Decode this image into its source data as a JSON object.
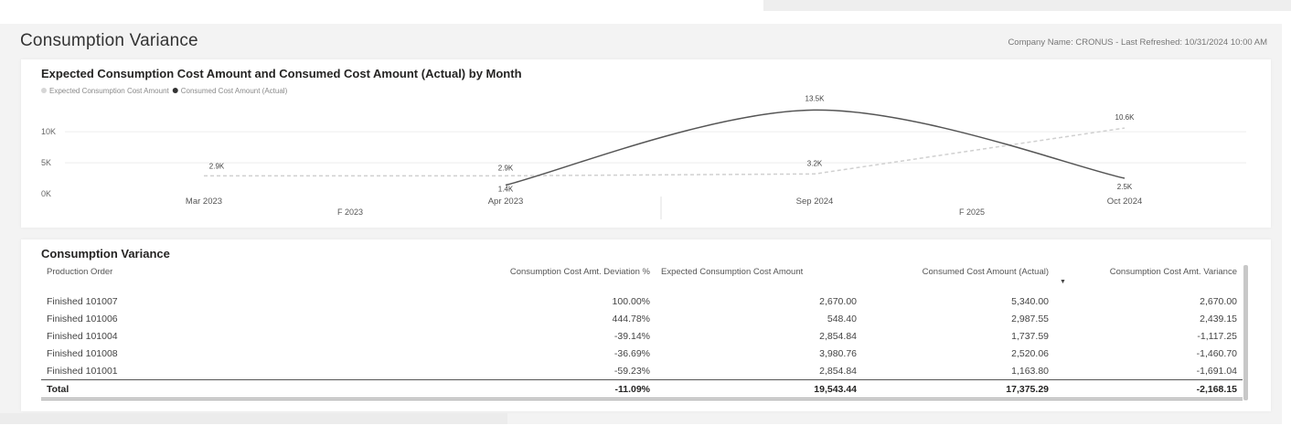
{
  "header": {
    "title": "Consumption Variance",
    "refresh_text": "Company Name: CRONUS - Last Refreshed: 10/31/2024 10:00 AM"
  },
  "chart_card": {
    "chart_data": {
      "type": "line",
      "title": "Expected Consumption Cost Amount and Consumed Cost Amount (Actual) by Month",
      "categories": [
        "Mar 2023",
        "Apr 2023",
        "Sep 2024",
        "Oct 2024"
      ],
      "category_groups": [
        {
          "label": "F 2023",
          "categories": [
            "Mar 2023",
            "Apr 2023"
          ]
        },
        {
          "label": "F 2025",
          "categories": [
            "Sep 2024",
            "Oct 2024"
          ]
        }
      ],
      "y_ticks": [
        "0K",
        "5K",
        "10K"
      ],
      "ylim": [
        0,
        14000
      ],
      "legend_position": "top-left",
      "series": [
        {
          "name": "Expected Consumption Cost Amount",
          "color": "#d0d0d0",
          "style": "dashed",
          "values": [
            2900,
            2900,
            3200,
            10600
          ],
          "labels": [
            "2.9K",
            "2.9K",
            "3.2K",
            "10.6K"
          ]
        },
        {
          "name": "Consumed Cost Amount (Actual)",
          "color": "#555555",
          "style": "solid",
          "smooth": true,
          "values": [
            null,
            1400,
            13500,
            2500
          ],
          "labels": [
            "",
            "1.4K",
            "13.5K",
            "2.5K"
          ]
        }
      ]
    }
  },
  "table_card": {
    "title": "Consumption Variance",
    "columns": [
      "Production Order",
      "Consumption Cost Amt. Deviation %",
      "Expected Consumption Cost Amount",
      "Consumed Cost Amount (Actual)",
      "Consumption Cost Amt. Variance"
    ],
    "sort_indicator": "▼",
    "rows": [
      [
        "Finished 101007",
        "100.00%",
        "2,670.00",
        "5,340.00",
        "2,670.00"
      ],
      [
        "Finished 101006",
        "444.78%",
        "548.40",
        "2,987.55",
        "2,439.15"
      ],
      [
        "Finished 101004",
        "-39.14%",
        "2,854.84",
        "1,737.59",
        "-1,117.25"
      ],
      [
        "Finished 101008",
        "-36.69%",
        "3,980.76",
        "2,520.06",
        "-1,460.70"
      ],
      [
        "Finished 101001",
        "-59.23%",
        "2,854.84",
        "1,163.80",
        "-1,691.04"
      ]
    ],
    "total": [
      "Total",
      "-11.09%",
      "19,543.44",
      "17,375.29",
      "-2,168.15"
    ]
  }
}
